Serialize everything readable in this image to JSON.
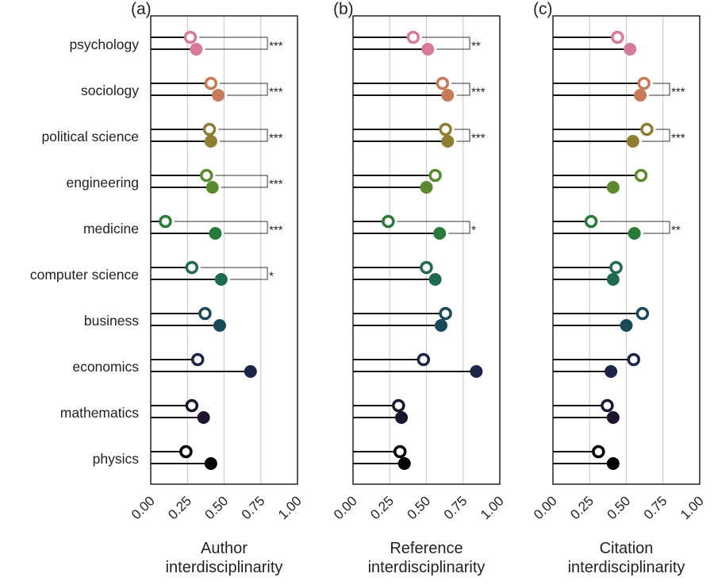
{
  "chart_data": {
    "type": "dot",
    "categories": [
      "psychology",
      "sociology",
      "political science",
      "engineering",
      "medicine",
      "computer science",
      "business",
      "economics",
      "mathematics",
      "physics"
    ],
    "colors": [
      "#d6799a",
      "#c77a57",
      "#8f7d33",
      "#5a8a2f",
      "#2a7a3a",
      "#1f6b4f",
      "#1a4a5a",
      "#1c2447",
      "#1e1430",
      "#000000"
    ],
    "xlim": [
      0,
      1
    ],
    "xticks": [
      "0.00",
      "0.25",
      "0.50",
      "0.75",
      "1.00"
    ],
    "grid": true,
    "panels": [
      {
        "label": "(a)",
        "xlabel": [
          "Author",
          "interdisciplinarity"
        ],
        "open": [
          0.27,
          0.41,
          0.4,
          0.38,
          0.1,
          0.28,
          0.37,
          0.32,
          0.28,
          0.24
        ],
        "filled": [
          0.31,
          0.46,
          0.41,
          0.42,
          0.44,
          0.48,
          0.47,
          0.68,
          0.36,
          0.41
        ],
        "significance": [
          "***",
          "***",
          "***",
          "***",
          "***",
          "*",
          "",
          "",
          "",
          ""
        ]
      },
      {
        "label": "(b)",
        "xlabel": [
          "Reference",
          "interdisciplinarity"
        ],
        "open": [
          0.41,
          0.61,
          0.63,
          0.56,
          0.24,
          0.5,
          0.63,
          0.48,
          0.31,
          0.32
        ],
        "filled": [
          0.51,
          0.645,
          0.645,
          0.5,
          0.59,
          0.56,
          0.6,
          0.84,
          0.33,
          0.35
        ],
        "significance": [
          "**",
          "***",
          "***",
          "",
          "*",
          "",
          "",
          "",
          "",
          ""
        ]
      },
      {
        "label": "(c)",
        "xlabel": [
          "Citation",
          "interdisciplinarity"
        ],
        "open": [
          0.44,
          0.62,
          0.64,
          0.6,
          0.26,
          0.43,
          0.61,
          0.55,
          0.37,
          0.31
        ],
        "filled": [
          0.525,
          0.595,
          0.545,
          0.41,
          0.555,
          0.41,
          0.5,
          0.395,
          0.41,
          0.41
        ],
        "significance": [
          "",
          "***",
          "***",
          "",
          "**",
          "",
          "",
          "",
          "",
          ""
        ]
      }
    ]
  }
}
